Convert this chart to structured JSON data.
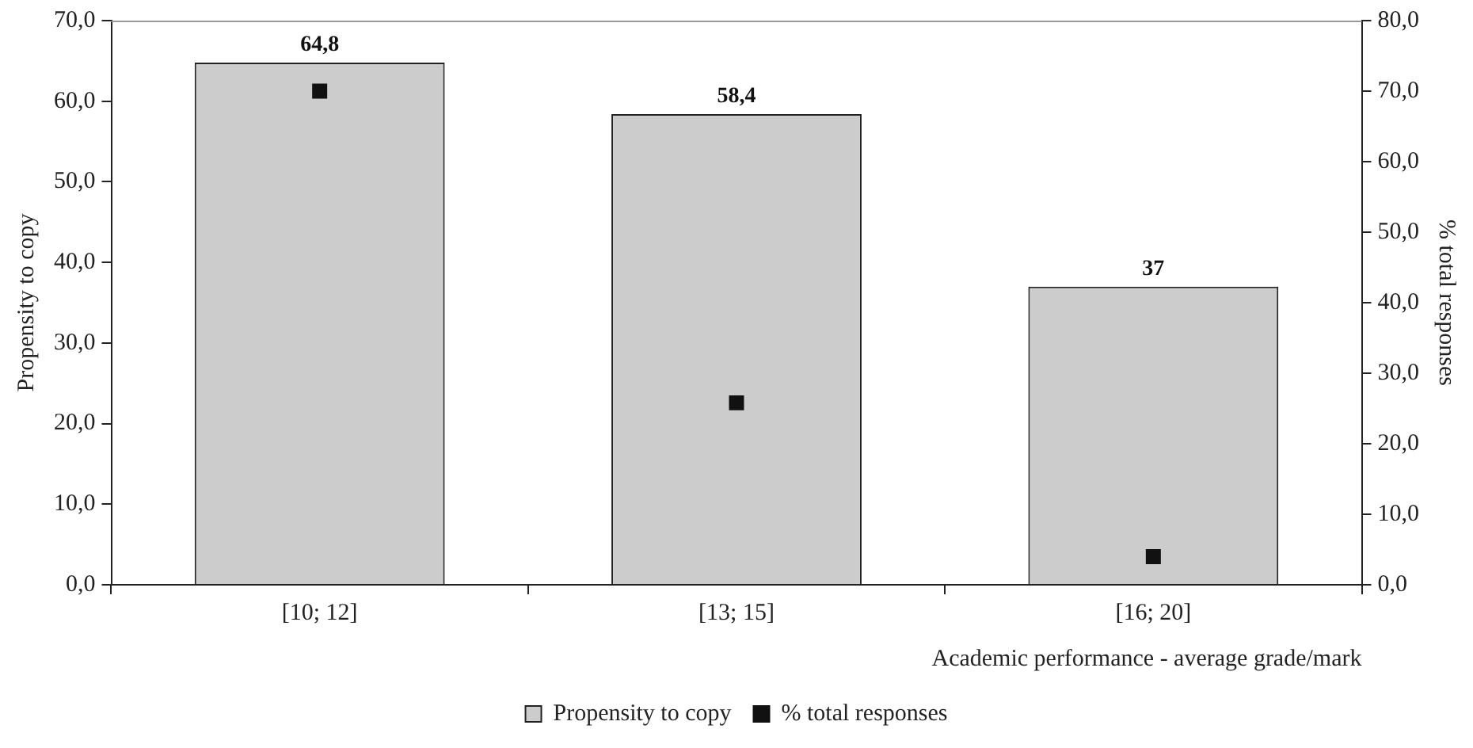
{
  "chart_data": {
    "type": "bar",
    "xlabel": "Academic performance - average grade/mark",
    "ylabel": "Propensity to copy",
    "y2label": "% total responses",
    "categories": [
      "[10; 12]",
      "[13; 15]",
      "[16; 20]"
    ],
    "series": [
      {
        "name": "Propensity to copy",
        "color": "#cccccc",
        "values": [
          64.8,
          58.4,
          37
        ],
        "value_labels": [
          "64,8",
          "58,4",
          "37"
        ]
      },
      {
        "name": "% total responses",
        "type": "scatter",
        "axis": "y2",
        "marker": "square",
        "color": "#111111",
        "values": [
          70.0,
          25.8,
          4.0
        ]
      }
    ],
    "ylim": [
      0,
      70
    ],
    "yticks": [
      {
        "value": 0,
        "label": "0,0"
      },
      {
        "value": 10,
        "label": "10,0"
      },
      {
        "value": 20,
        "label": "20,0"
      },
      {
        "value": 30,
        "label": "30,0"
      },
      {
        "value": 40,
        "label": "40,0"
      },
      {
        "value": 50,
        "label": "50,0"
      },
      {
        "value": 60,
        "label": "60,0"
      },
      {
        "value": 70,
        "label": "70,0"
      }
    ],
    "y2lim": [
      0,
      80
    ],
    "y2ticks": [
      {
        "value": 0,
        "label": "0,0"
      },
      {
        "value": 10,
        "label": "10,0"
      },
      {
        "value": 20,
        "label": "20,0"
      },
      {
        "value": 30,
        "label": "30,0"
      },
      {
        "value": 40,
        "label": "40,0"
      },
      {
        "value": 50,
        "label": "50,0"
      },
      {
        "value": 60,
        "label": "60,0"
      },
      {
        "value": 70,
        "label": "70,0"
      },
      {
        "value": 80,
        "label": "80,0"
      }
    ],
    "grid": false,
    "legend": "bottom"
  }
}
